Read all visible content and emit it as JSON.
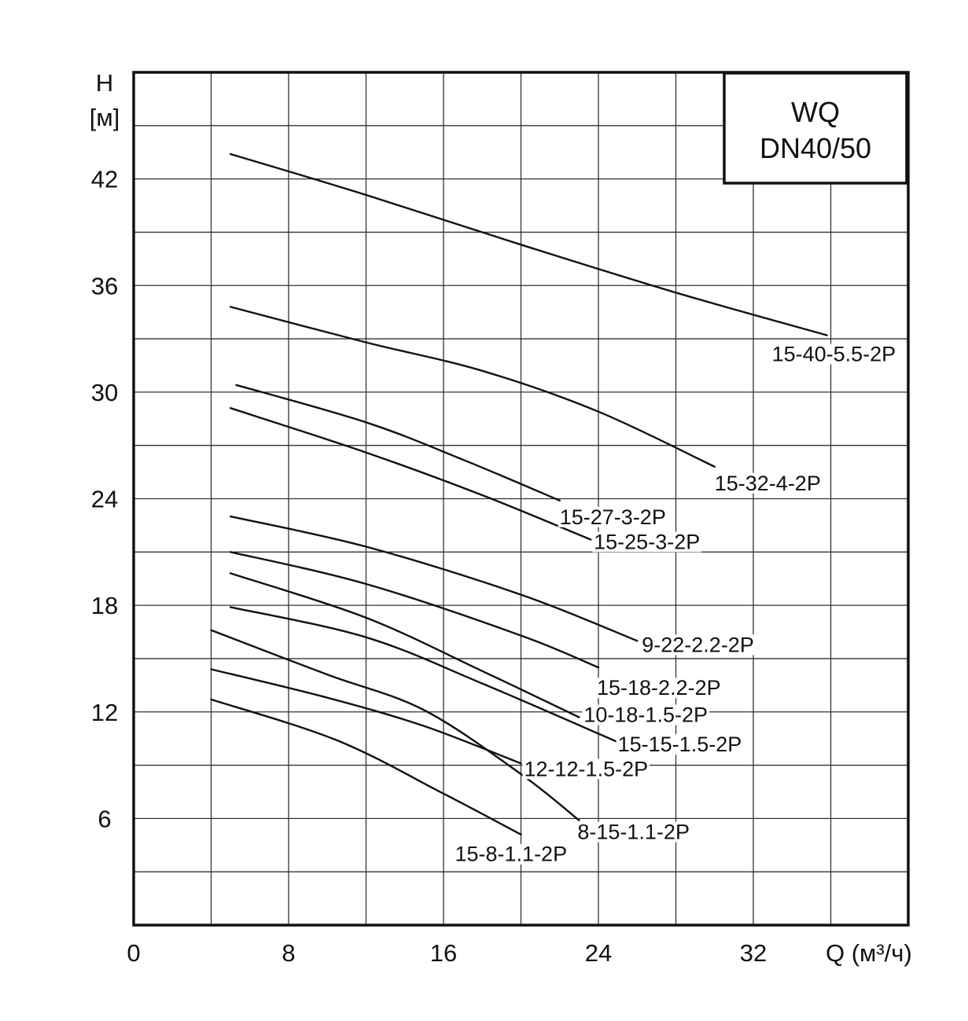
{
  "chart_data": {
    "type": "line",
    "title_lines": [
      "WQ",
      "DN40/50"
    ],
    "xlabel": "Q (м³/ч)",
    "ylabel_lines": [
      "H",
      "[м]"
    ],
    "xlim": [
      0,
      40
    ],
    "ylim": [
      0,
      48
    ],
    "x_ticks": [
      "0",
      "8",
      "16",
      "24",
      "32"
    ],
    "y_ticks": [
      "6",
      "12",
      "18",
      "24",
      "30",
      "36",
      "42"
    ],
    "grid": true,
    "series": [
      {
        "name": "15-40-5.5-2P",
        "points": [
          [
            5,
            43.4
          ],
          [
            12,
            41.1
          ],
          [
            20,
            38.3
          ],
          [
            28,
            35.6
          ],
          [
            35.8,
            33.2
          ]
        ]
      },
      {
        "name": "15-32-4-2P",
        "points": [
          [
            5,
            34.8
          ],
          [
            12,
            32.8
          ],
          [
            18,
            31.2
          ],
          [
            24,
            28.9
          ],
          [
            30,
            25.8
          ]
        ]
      },
      {
        "name": "15-27-3-2P",
        "points": [
          [
            5.3,
            30.4
          ],
          [
            12,
            28.3
          ],
          [
            17,
            26.2
          ],
          [
            22,
            23.9
          ]
        ]
      },
      {
        "name": "15-25-3-2P",
        "points": [
          [
            5,
            29.1
          ],
          [
            12,
            26.6
          ],
          [
            18,
            24.2
          ],
          [
            23.6,
            21.7
          ]
        ]
      },
      {
        "name": "9-22-2.2-2P",
        "points": [
          [
            5,
            23.0
          ],
          [
            12,
            21.3
          ],
          [
            20,
            18.6
          ],
          [
            26,
            16.0
          ]
        ]
      },
      {
        "name": "15-18-2.2-2P",
        "points": [
          [
            5,
            21.0
          ],
          [
            12,
            19.2
          ],
          [
            20,
            16.3
          ],
          [
            24,
            14.5
          ]
        ]
      },
      {
        "name": "10-18-1.5-2P",
        "points": [
          [
            5,
            19.8
          ],
          [
            12,
            17.3
          ],
          [
            18,
            14.3
          ],
          [
            23,
            11.7
          ]
        ]
      },
      {
        "name": "15-15-1.5-2P",
        "points": [
          [
            5,
            17.9
          ],
          [
            12,
            16.2
          ],
          [
            18,
            13.6
          ],
          [
            25,
            10.3
          ]
        ]
      },
      {
        "name": "12-12-1.5-2P",
        "points": [
          [
            4,
            14.4
          ],
          [
            10,
            12.8
          ],
          [
            15,
            11.2
          ],
          [
            20,
            9.1
          ]
        ]
      },
      {
        "name": "8-15-1.1-2P",
        "points": [
          [
            4,
            16.6
          ],
          [
            10,
            14.1
          ],
          [
            15,
            12.1
          ],
          [
            20,
            8.5
          ],
          [
            23,
            5.9
          ]
        ]
      },
      {
        "name": "15-8-1.1-2P",
        "points": [
          [
            4,
            12.7
          ],
          [
            10.5,
            10.4
          ],
          [
            16,
            7.4
          ],
          [
            20,
            5.1
          ]
        ]
      }
    ]
  }
}
